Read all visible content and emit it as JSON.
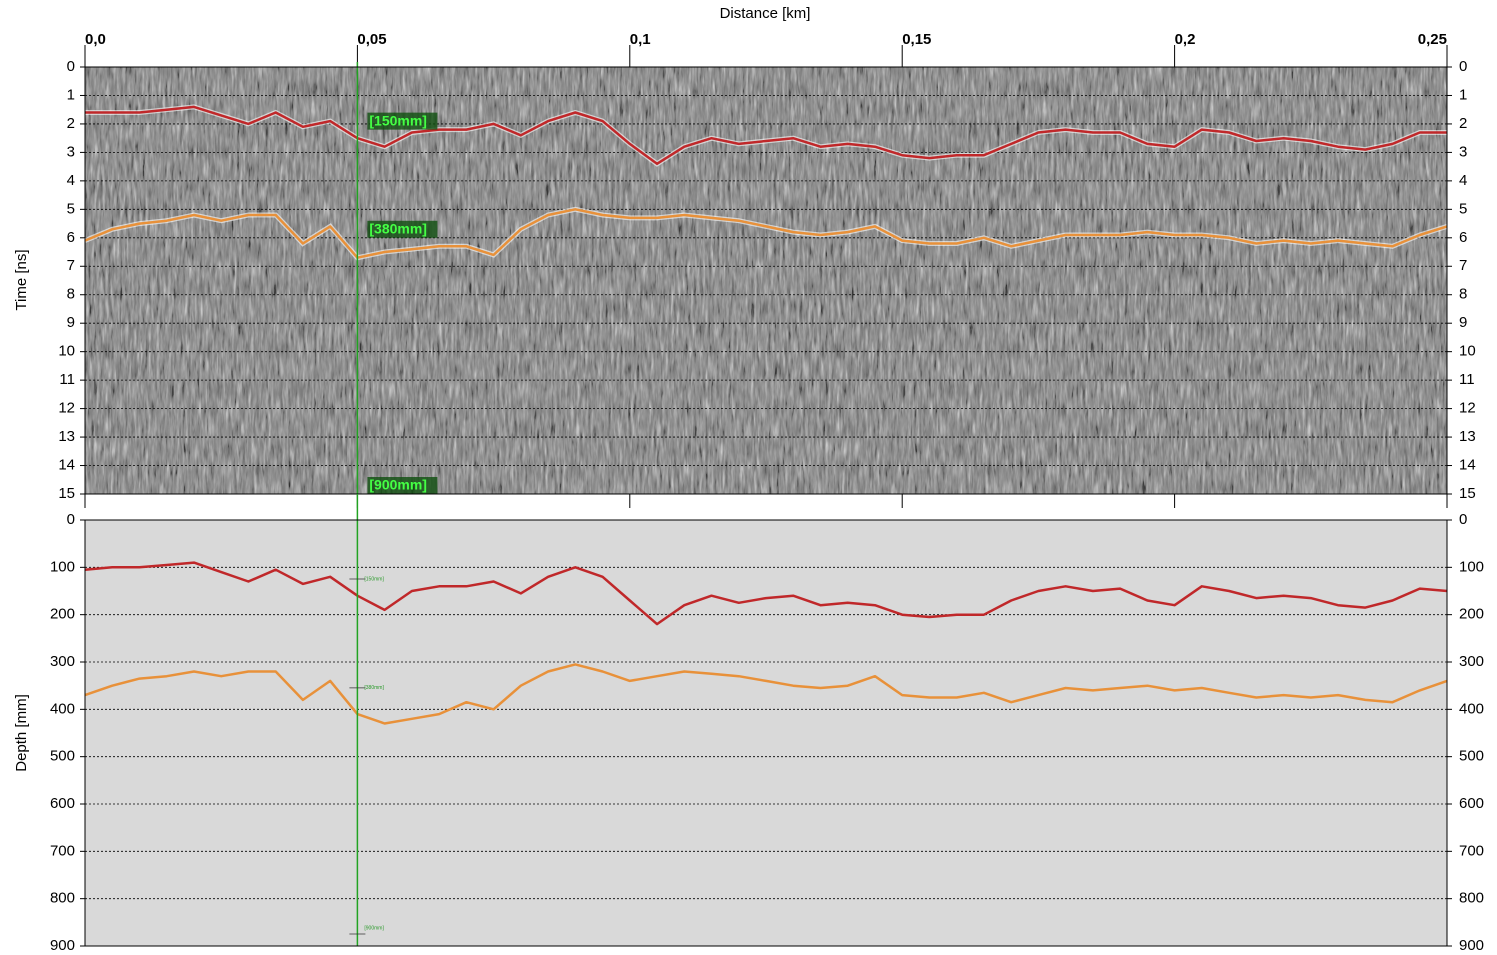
{
  "chart_data": [
    {
      "type": "line",
      "x_label": "Distance [km]",
      "y_label": "Time [ns]",
      "x": [
        0,
        0.005,
        0.01,
        0.015,
        0.02,
        0.025,
        0.03,
        0.035,
        0.04,
        0.045,
        0.05,
        0.055,
        0.06,
        0.065,
        0.07,
        0.075,
        0.08,
        0.085,
        0.09,
        0.095,
        0.1,
        0.105,
        0.11,
        0.115,
        0.12,
        0.125,
        0.13,
        0.135,
        0.14,
        0.145,
        0.15,
        0.155,
        0.16,
        0.165,
        0.17,
        0.175,
        0.18,
        0.185,
        0.19,
        0.195,
        0.2,
        0.205,
        0.21,
        0.215,
        0.22,
        0.225,
        0.23,
        0.235,
        0.24,
        0.245,
        0.25
      ],
      "xlim": [
        0,
        0.25
      ],
      "xticks": [
        {
          "value": 0,
          "label": "0,0"
        },
        {
          "value": 0.05,
          "label": "0,05"
        },
        {
          "value": 0.1,
          "label": "0,1"
        },
        {
          "value": 0.15,
          "label": "0,15"
        },
        {
          "value": 0.2,
          "label": "0,2"
        },
        {
          "value": 0.25,
          "label": "0,25"
        }
      ],
      "ylim": [
        0,
        15
      ],
      "y_inverted": true,
      "yticks": [
        0,
        1,
        2,
        3,
        4,
        5,
        6,
        7,
        8,
        9,
        10,
        11,
        12,
        13,
        14,
        15
      ],
      "grid": true,
      "background": "radargram",
      "series": [
        {
          "color": "#c0282a",
          "values": [
            1.6,
            1.6,
            1.6,
            1.5,
            1.4,
            1.7,
            2.0,
            1.6,
            2.1,
            1.9,
            2.5,
            2.8,
            2.3,
            2.2,
            2.2,
            2.0,
            2.4,
            1.9,
            1.6,
            1.9,
            2.7,
            3.4,
            2.8,
            2.5,
            2.7,
            2.6,
            2.5,
            2.8,
            2.7,
            2.8,
            3.1,
            3.2,
            3.1,
            3.1,
            2.7,
            2.3,
            2.2,
            2.3,
            2.3,
            2.7,
            2.8,
            2.2,
            2.3,
            2.6,
            2.5,
            2.6,
            2.8,
            2.9,
            2.7,
            2.3,
            2.3
          ]
        },
        {
          "color": "#e8913a",
          "values": [
            6.1,
            5.7,
            5.5,
            5.4,
            5.2,
            5.4,
            5.2,
            5.2,
            6.2,
            5.6,
            6.7,
            6.5,
            6.4,
            6.3,
            6.3,
            6.6,
            5.7,
            5.2,
            5.0,
            5.2,
            5.3,
            5.3,
            5.2,
            5.3,
            5.4,
            5.6,
            5.8,
            5.9,
            5.8,
            5.6,
            6.1,
            6.2,
            6.2,
            6.0,
            6.3,
            6.1,
            5.9,
            5.9,
            5.9,
            5.8,
            5.9,
            5.9,
            6.0,
            6.2,
            6.1,
            6.2,
            6.1,
            6.2,
            6.3,
            5.9,
            5.6
          ]
        }
      ],
      "marker": {
        "x": 0.05,
        "labels": [
          "[150mm]",
          "[380mm]",
          "[900mm]"
        ],
        "y": [
          2.2,
          6,
          15
        ]
      }
    },
    {
      "type": "line",
      "y_label": "Depth [mm]",
      "x": [
        0,
        0.005,
        0.01,
        0.015,
        0.02,
        0.025,
        0.03,
        0.035,
        0.04,
        0.045,
        0.05,
        0.055,
        0.06,
        0.065,
        0.07,
        0.075,
        0.08,
        0.085,
        0.09,
        0.095,
        0.1,
        0.105,
        0.11,
        0.115,
        0.12,
        0.125,
        0.13,
        0.135,
        0.14,
        0.145,
        0.15,
        0.155,
        0.16,
        0.165,
        0.17,
        0.175,
        0.18,
        0.185,
        0.19,
        0.195,
        0.2,
        0.205,
        0.21,
        0.215,
        0.22,
        0.225,
        0.23,
        0.235,
        0.24,
        0.245,
        0.25
      ],
      "xlim": [
        0,
        0.25
      ],
      "ylim": [
        0,
        900
      ],
      "y_inverted": true,
      "yticks": [
        0,
        100,
        200,
        300,
        400,
        500,
        600,
        700,
        800,
        900
      ],
      "grid": true,
      "background": "#d9d9d9",
      "series": [
        {
          "color": "#c0282a",
          "values": [
            105,
            100,
            100,
            95,
            90,
            110,
            130,
            105,
            135,
            120,
            160,
            190,
            150,
            140,
            140,
            130,
            155,
            120,
            100,
            120,
            170,
            220,
            180,
            160,
            175,
            165,
            160,
            180,
            175,
            180,
            200,
            205,
            200,
            200,
            170,
            150,
            140,
            150,
            145,
            170,
            180,
            140,
            150,
            165,
            160,
            165,
            180,
            185,
            170,
            145,
            150
          ]
        },
        {
          "color": "#e8913a",
          "values": [
            370,
            350,
            335,
            330,
            320,
            330,
            320,
            320,
            380,
            340,
            410,
            430,
            420,
            410,
            385,
            400,
            350,
            320,
            305,
            320,
            340,
            330,
            320,
            325,
            330,
            340,
            350,
            355,
            350,
            330,
            370,
            375,
            375,
            365,
            385,
            370,
            355,
            360,
            355,
            350,
            360,
            355,
            365,
            375,
            370,
            375,
            370,
            380,
            385,
            360,
            340
          ]
        }
      ],
      "marker": {
        "x": 0.05,
        "labels": [
          "[150mm]",
          "[380mm]",
          "[900mm]"
        ],
        "y": [
          150,
          380,
          900
        ]
      }
    }
  ]
}
